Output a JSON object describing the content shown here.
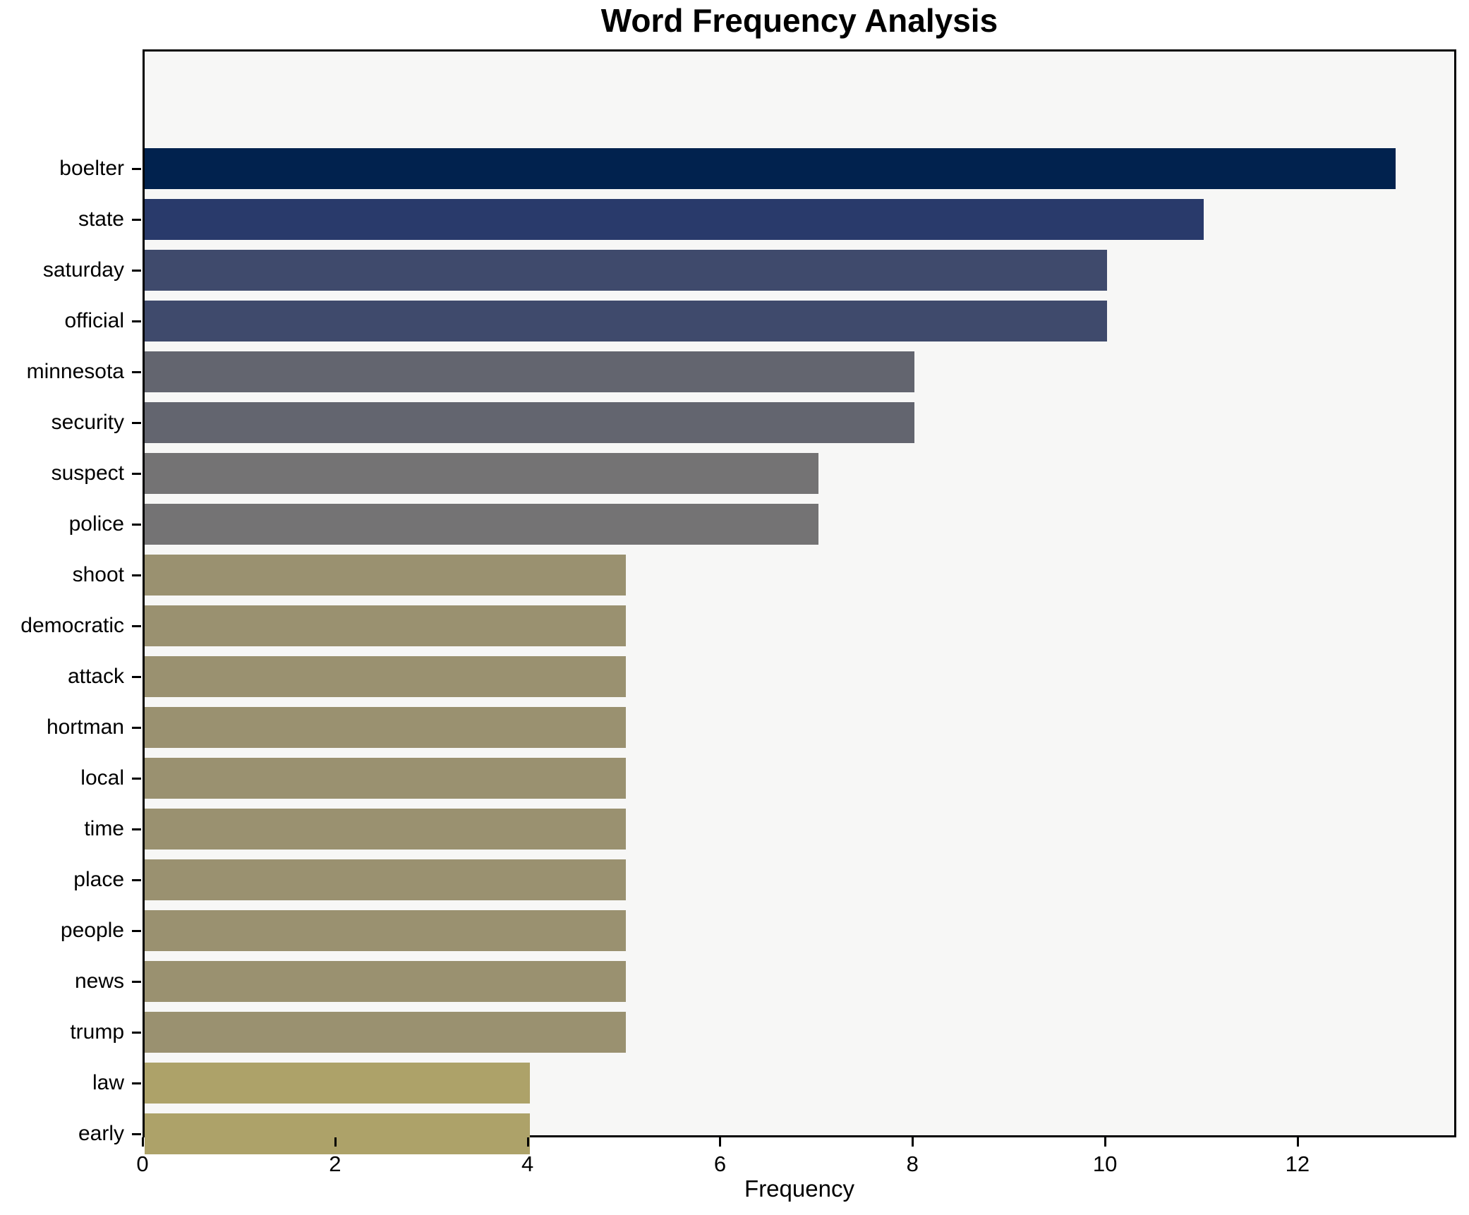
{
  "chart_data": {
    "type": "bar",
    "orientation": "horizontal",
    "title": "Word Frequency Analysis",
    "xlabel": "Frequency",
    "ylabel": "",
    "categories": [
      "boelter",
      "state",
      "saturday",
      "official",
      "minnesota",
      "security",
      "suspect",
      "police",
      "shoot",
      "democratic",
      "attack",
      "hortman",
      "local",
      "time",
      "place",
      "people",
      "news",
      "trump",
      "law",
      "early"
    ],
    "values": [
      13,
      11,
      10,
      10,
      8,
      8,
      7,
      7,
      5,
      5,
      5,
      5,
      5,
      5,
      5,
      5,
      5,
      5,
      4,
      4
    ],
    "bar_colors": [
      "#01224e",
      "#293a6b",
      "#3f4a6c",
      "#3f4a6c",
      "#63656f",
      "#63656f",
      "#747374",
      "#747374",
      "#9a9170",
      "#9a9170",
      "#9a9170",
      "#9a9170",
      "#9a9170",
      "#9a9170",
      "#9a9170",
      "#9a9170",
      "#9a9170",
      "#9a9170",
      "#ada269",
      "#ada269"
    ],
    "xticks": [
      0,
      2,
      4,
      6,
      8,
      10,
      12
    ],
    "xlim": [
      0,
      13.65
    ],
    "grid": false,
    "legend": null,
    "plot_background": "#f7f7f6",
    "figure_background": "#ffffff"
  }
}
